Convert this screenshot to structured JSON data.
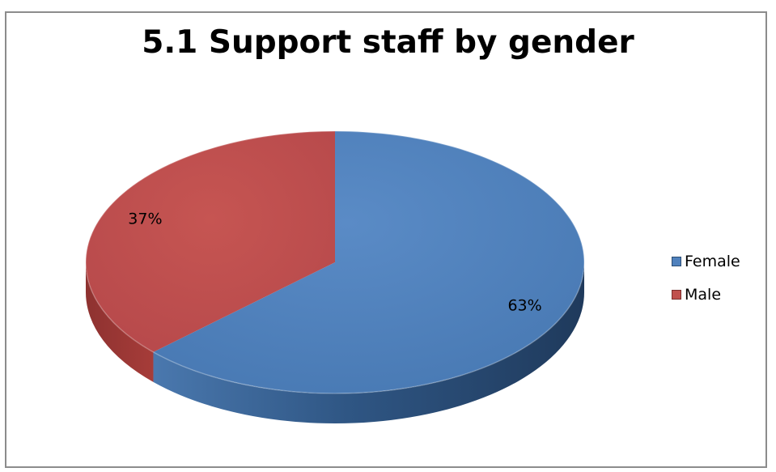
{
  "chart_data": {
    "type": "pie",
    "title": "5.1 Support staff by gender",
    "categories": [
      "Female",
      "Male"
    ],
    "values": [
      63,
      37
    ],
    "unit": "%",
    "data_labels": [
      "63%",
      "37%"
    ],
    "colors": [
      "#4f81bd",
      "#c0504d"
    ],
    "legend_placement": "right",
    "style": "3d"
  }
}
